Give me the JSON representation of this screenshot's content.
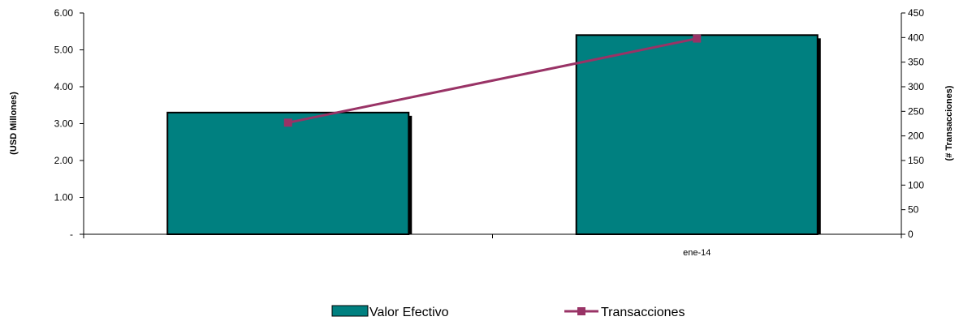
{
  "chart_data": {
    "type": "bar",
    "categories": [
      "",
      "ene-14"
    ],
    "series": [
      {
        "name": "Valor Efectivo",
        "type": "bar",
        "axis": "left",
        "values": [
          3.3,
          5.4
        ],
        "color": "#008080"
      },
      {
        "name": "Transacciones",
        "type": "line",
        "axis": "right",
        "values": [
          227,
          398
        ],
        "color": "#993366"
      }
    ],
    "left_axis": {
      "label": "(USD Millones)",
      "range": [
        0,
        6
      ],
      "ticks": [
        0,
        1,
        2,
        3,
        4,
        5,
        6
      ],
      "tick_labels": [
        "-",
        "1.00",
        "2.00",
        "3.00",
        "4.00",
        "5.00",
        "6.00"
      ]
    },
    "right_axis": {
      "label": "(# Transacciones)",
      "range": [
        0,
        450
      ],
      "ticks": [
        0,
        50,
        100,
        150,
        200,
        250,
        300,
        350,
        400,
        450
      ],
      "tick_labels": [
        "0",
        "50",
        "100",
        "150",
        "200",
        "250",
        "300",
        "350",
        "400",
        "450"
      ]
    },
    "grid": false,
    "legend_position": "bottom"
  }
}
